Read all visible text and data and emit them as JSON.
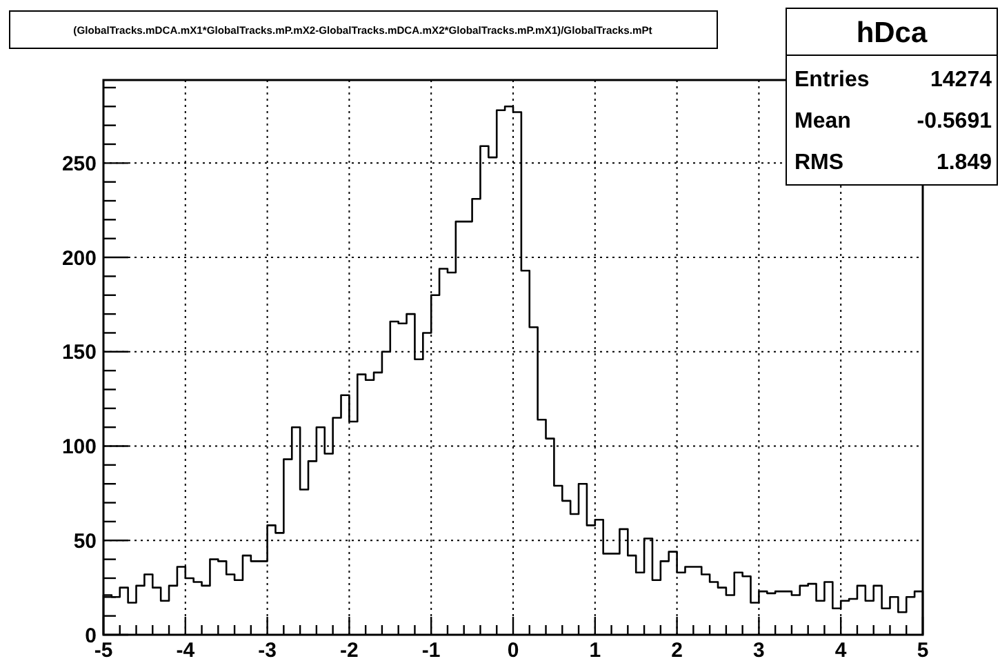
{
  "chart_data": {
    "type": "histogram",
    "title": "(GlobalTracks.mDCA.mX1*GlobalTracks.mP.mX2-GlobalTracks.mDCA.mX2*GlobalTracks.mP.mX1)/GlobalTracks.mPt",
    "annotations": [
      "hDca",
      "Entries",
      "14274",
      "Mean",
      "-0.5691",
      "RMS",
      "1.849"
    ],
    "bins": [
      -5.0,
      -4.9,
      -4.8,
      -4.7,
      -4.6,
      -4.5,
      -4.4,
      -4.3,
      -4.2,
      -4.1,
      -4.0,
      -3.9,
      -3.8,
      -3.7,
      -3.6,
      -3.5,
      -3.4,
      -3.3,
      -3.2,
      -3.1,
      -3.0,
      -2.9,
      -2.8,
      -2.7,
      -2.6,
      -2.5,
      -2.4,
      -2.3,
      -2.2,
      -2.1,
      -2.0,
      -1.9,
      -1.8,
      -1.7,
      -1.6,
      -1.5,
      -1.4,
      -1.3,
      -1.2,
      -1.1,
      -1.0,
      -0.9,
      -0.8,
      -0.7,
      -0.6,
      -0.5,
      -0.4,
      -0.3,
      -0.2,
      -0.1,
      0.0,
      0.1,
      0.2,
      0.3,
      0.4,
      0.5,
      0.6,
      0.7,
      0.8,
      0.9,
      1.0,
      1.1,
      1.2,
      1.3,
      1.4,
      1.5,
      1.6,
      1.7,
      1.8,
      1.9,
      2.0,
      2.1,
      2.2,
      2.3,
      2.4,
      2.5,
      2.6,
      2.7,
      2.8,
      2.9,
      3.0,
      3.1,
      3.2,
      3.3,
      3.4,
      3.5,
      3.6,
      3.7,
      3.8,
      3.9,
      4.0,
      4.1,
      4.2,
      4.3,
      4.4,
      4.5,
      4.6,
      4.7,
      4.8,
      4.9,
      5.0
    ],
    "values": [
      21,
      20,
      25,
      17,
      26,
      32,
      25,
      18,
      26,
      36,
      30,
      28,
      26,
      40,
      39,
      32,
      29,
      42,
      39,
      39,
      58,
      54,
      93,
      110,
      77,
      92,
      110,
      96,
      115,
      127,
      113,
      138,
      135,
      139,
      150,
      166,
      165,
      170,
      146,
      160,
      180,
      194,
      192,
      219,
      219,
      231,
      259,
      253,
      278,
      280,
      277,
      193,
      163,
      114,
      104,
      79,
      71,
      64,
      80,
      58,
      61,
      43,
      43,
      56,
      42,
      33,
      51,
      29,
      39,
      44,
      33,
      36,
      36,
      32,
      28,
      25,
      21,
      33,
      31,
      17,
      23,
      22,
      23,
      23,
      21,
      26,
      27,
      18,
      28,
      14,
      18,
      19,
      26,
      18,
      26,
      14,
      20,
      12,
      20,
      23
    ],
    "color": "#000000",
    "xlim": [
      -5,
      5
    ],
    "ylim": [
      0,
      294
    ],
    "xticks": [
      -5,
      {
        "value": -4.8,
        "label": null
      },
      {
        "value": -4.6,
        "label": null
      },
      {
        "value": -4.4,
        "label": null
      },
      {
        "value": -4.2,
        "label": null
      },
      -4,
      {
        "value": -3.8,
        "label": null
      },
      {
        "value": -3.6,
        "label": null
      },
      {
        "value": -3.4,
        "label": null
      },
      {
        "value": -3.2,
        "label": null
      },
      -3,
      {
        "value": -2.8,
        "label": null
      },
      {
        "value": -2.6,
        "label": null
      },
      {
        "value": -2.4,
        "label": null
      },
      {
        "value": -2.2,
        "label": null
      },
      -2,
      {
        "value": -1.8,
        "label": null
      },
      {
        "value": -1.6,
        "label": null
      },
      {
        "value": -1.4,
        "label": null
      },
      {
        "value": -1.2,
        "label": null
      },
      -1,
      {
        "value": -0.8,
        "label": null
      },
      {
        "value": -0.6,
        "label": null
      },
      {
        "value": -0.4,
        "label": null
      },
      {
        "value": -0.2,
        "label": null
      },
      0,
      {
        "value": 0.2,
        "label": null
      },
      {
        "value": 0.4,
        "label": null
      },
      {
        "value": 0.6,
        "label": null
      },
      {
        "value": 0.8,
        "label": null
      },
      1,
      {
        "value": 1.2,
        "label": null
      },
      {
        "value": 1.4,
        "label": null
      },
      {
        "value": 1.6,
        "label": null
      },
      {
        "value": 1.8,
        "label": null
      },
      2,
      {
        "value": 2.2,
        "label": null
      },
      {
        "value": 2.4,
        "label": null
      },
      {
        "value": 2.6,
        "label": null
      },
      {
        "value": 2.8,
        "label": null
      },
      3,
      {
        "value": 3.2,
        "label": null
      },
      {
        "value": 3.4,
        "label": null
      },
      {
        "value": 3.6,
        "label": null
      },
      {
        "value": 3.8,
        "label": null
      },
      4,
      {
        "value": 4.2,
        "label": null
      },
      {
        "value": 4.4,
        "label": null
      },
      {
        "value": 4.6,
        "label": null
      },
      {
        "value": 4.8,
        "label": null
      },
      5
    ],
    "yticks": [
      0,
      {
        "value": 10,
        "label": null
      },
      {
        "value": 20,
        "label": null
      },
      {
        "value": 30,
        "label": null
      },
      {
        "value": 40,
        "label": null
      },
      50,
      {
        "value": 60,
        "label": null
      },
      {
        "value": 70,
        "label": null
      },
      {
        "value": 80,
        "label": null
      },
      {
        "value": 90,
        "label": null
      },
      100,
      {
        "value": 110,
        "label": null
      },
      {
        "value": 120,
        "label": null
      },
      {
        "value": 130,
        "label": null
      },
      {
        "value": 140,
        "label": null
      },
      150,
      {
        "value": 160,
        "label": null
      },
      {
        "value": 170,
        "label": null
      },
      {
        "value": 180,
        "label": null
      },
      {
        "value": 190,
        "label": null
      },
      200,
      {
        "value": 210,
        "label": null
      },
      {
        "value": 220,
        "label": null
      },
      {
        "value": 230,
        "label": null
      },
      {
        "value": 240,
        "label": null
      },
      250,
      {
        "value": 260,
        "label": null
      },
      {
        "value": 270,
        "label": null
      },
      {
        "value": 280,
        "label": null
      },
      {
        "value": 290,
        "label": null
      }
    ],
    "grid": true
  }
}
